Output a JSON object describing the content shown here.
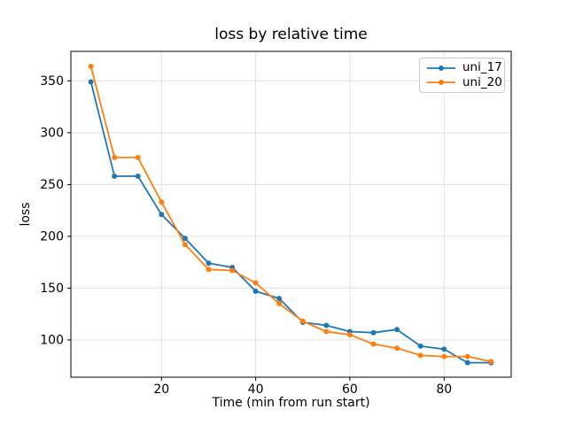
{
  "figure": {
    "background": "#ffffff"
  },
  "chart_data": {
    "type": "line",
    "title": "loss by relative time",
    "xlabel": "Time (min from run start)",
    "ylabel": "loss",
    "x": [
      5,
      10,
      15,
      20,
      25,
      30,
      35,
      40,
      45,
      50,
      55,
      60,
      65,
      70,
      75,
      80,
      85,
      90
    ],
    "series": [
      {
        "name": "uni_17",
        "color": "#1f77b4",
        "values": [
          349,
          258,
          258,
          221,
          198,
          174,
          170,
          147,
          140,
          117,
          114,
          108,
          107,
          110,
          94,
          91,
          78,
          78
        ]
      },
      {
        "name": "uni_20",
        "color": "#ff7f0e",
        "values": [
          364,
          276,
          276,
          233,
          192,
          168,
          167,
          155,
          135,
          118,
          108,
          105,
          96,
          92,
          85,
          84,
          84,
          79
        ]
      }
    ],
    "xlim": [
      0.75,
      94.25
    ],
    "ylim": [
      64,
      378.5
    ],
    "xticks": [
      20,
      40,
      60,
      80
    ],
    "yticks": [
      100,
      150,
      200,
      250,
      300,
      350
    ],
    "grid": true,
    "grid_color": "#e0e0e0",
    "spine_color": "#000000",
    "legend_position": "upper right"
  }
}
